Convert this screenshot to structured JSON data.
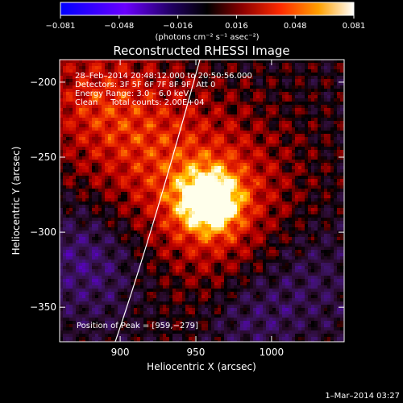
{
  "chart_data": {
    "type": "heatmap",
    "title": "Reconstructed RHESSI Image",
    "xlabel": "Heliocentric X (arcsec)",
    "ylabel": "Heliocentric Y (arcsec)",
    "xlim": [
      860,
      1048
    ],
    "ylim": [
      -373,
      -185
    ],
    "x_ticks": [
      900,
      950,
      1000
    ],
    "x_tick_labels": [
      "900",
      "950",
      "1000"
    ],
    "y_ticks": [
      -200,
      -250,
      -300,
      -350
    ],
    "y_tick_labels": [
      "−200",
      "−250",
      "−300",
      "−350"
    ],
    "colorbar": {
      "min": -0.081,
      "max": 0.081,
      "tick_labels": [
        "−0.081",
        "−0.048",
        "−0.016",
        "0.016",
        "0.048",
        "0.081"
      ],
      "units": "(photons cm⁻² s⁻¹ asec⁻²)"
    },
    "info_lines": [
      "28–Feb–2014 20:48:12.000 to 20:50:56.000",
      "Detectors: 3F 5F 6F 7F 8F 9F, Att 0",
      "Energy Range: 3.0 – 6.0 keV",
      "Clean     Total counts: 2.00E+04"
    ],
    "peak_label": "Position of Peak = [959,−279]",
    "peak": {
      "x": 959,
      "y": -279,
      "value": 0.081
    },
    "timestamp": "1–Mar–2014 03:27",
    "colormap_stops": [
      "#0000ff",
      "#5a0d8a",
      "#3c1a52",
      "#000000",
      "#5a0000",
      "#b40000",
      "#e63200",
      "#ff7a00",
      "#ffc800",
      "#ffffe8"
    ]
  }
}
